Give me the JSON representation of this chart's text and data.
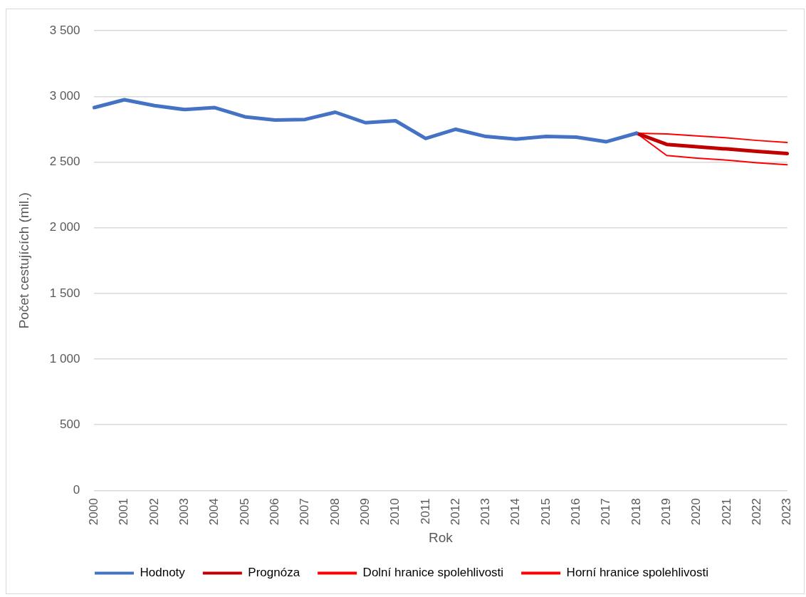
{
  "chart_data": {
    "type": "line",
    "xlabel": "Rok",
    "ylabel": "Počet cestujících (mil.)",
    "categories": [
      "2000",
      "2001",
      "2002",
      "2003",
      "2004",
      "2005",
      "2006",
      "2007",
      "2008",
      "2009",
      "2010",
      "2011",
      "2012",
      "2013",
      "2014",
      "2015",
      "2016",
      "2017",
      "2018",
      "2019",
      "2020",
      "2021",
      "2022",
      "2023"
    ],
    "series": [
      {
        "name": "Hodnoty",
        "color": "#4472c4",
        "values": [
          2915,
          2975,
          2930,
          2900,
          2915,
          2845,
          2820,
          2825,
          2880,
          2800,
          2815,
          2680,
          2750,
          2695,
          2675,
          2695,
          2690,
          2655,
          2720,
          null,
          null,
          null,
          null,
          null
        ]
      },
      {
        "name": "Prognóza",
        "color": "#c00000",
        "values": [
          null,
          null,
          null,
          null,
          null,
          null,
          null,
          null,
          null,
          null,
          null,
          null,
          null,
          null,
          null,
          null,
          null,
          null,
          2720,
          2635,
          2617,
          2600,
          2582,
          2565
        ]
      },
      {
        "name": "Dolní hranice spolehlivosti",
        "color": "#ff0000",
        "values": [
          null,
          null,
          null,
          null,
          null,
          null,
          null,
          null,
          null,
          null,
          null,
          null,
          null,
          null,
          null,
          null,
          null,
          null,
          2720,
          2550,
          2530,
          2515,
          2495,
          2480
        ]
      },
      {
        "name": "Horní hranice spolehlivosti",
        "color": "#ff0000",
        "values": [
          null,
          null,
          null,
          null,
          null,
          null,
          null,
          null,
          null,
          null,
          null,
          null,
          null,
          null,
          null,
          null,
          null,
          null,
          2720,
          2715,
          2700,
          2685,
          2665,
          2650
        ]
      }
    ],
    "ylim": [
      0,
      3500
    ],
    "yticks": [
      0,
      500,
      {
        "value": 1000,
        "label": "1 000"
      },
      {
        "value": 1500,
        "label": "1 500"
      },
      {
        "value": 2000,
        "label": "2 000"
      },
      {
        "value": 2500,
        "label": "2 500"
      },
      {
        "value": 3000,
        "label": "3 000"
      },
      {
        "value": 3500,
        "label": "3 500"
      }
    ],
    "grid": "y",
    "legend": "bottom",
    "marker": "none",
    "line_style": "solid"
  }
}
